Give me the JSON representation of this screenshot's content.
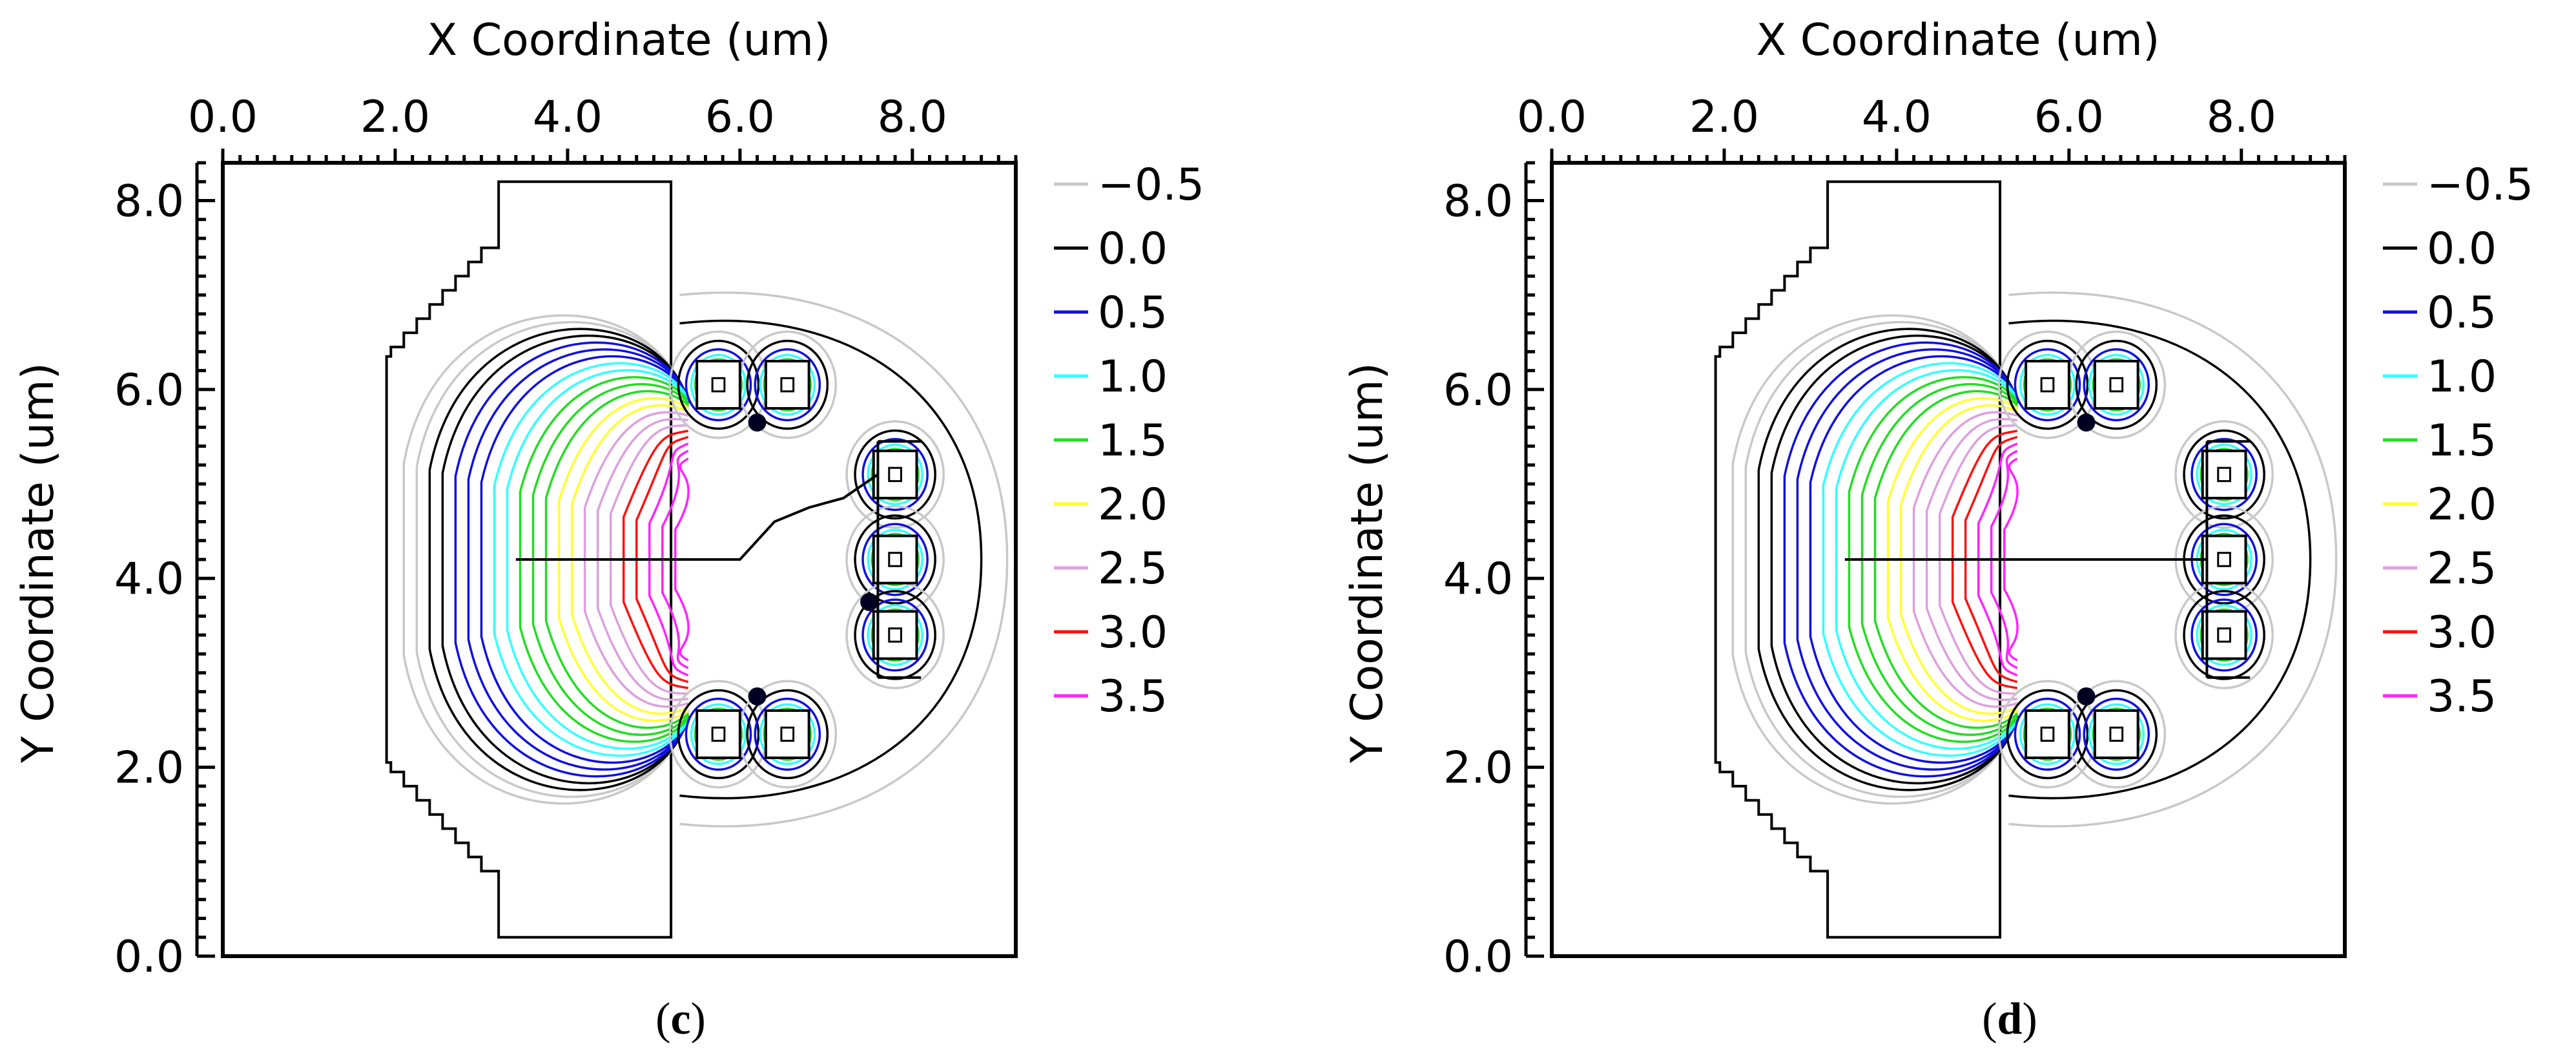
{
  "chart_data": [
    {
      "type": "contour",
      "xlabel": "X Coordinate (um)",
      "ylabel": "Y Coordinate (um)",
      "xlim": [
        0.0,
        9.2
      ],
      "ylim": [
        0.0,
        8.4
      ],
      "xticks": [
        "0.0",
        "2.0",
        "4.0",
        "6.0",
        "8.0"
      ],
      "yticks": [
        "0.0",
        "2.0",
        "4.0",
        "6.0",
        "8.0"
      ],
      "x_axis_position": "top",
      "legend": {
        "position": "right",
        "levels": [
          {
            "label": "−0.5",
            "value": -0.5,
            "color": "#c8c8c8"
          },
          {
            "label": "0.0",
            "value": 0.0,
            "color": "#000000"
          },
          {
            "label": "0.5",
            "value": 0.5,
            "color": "#1010e0"
          },
          {
            "label": "1.0",
            "value": 1.0,
            "color": "#33ffff"
          },
          {
            "label": "1.5",
            "value": 1.5,
            "color": "#22dd22"
          },
          {
            "label": "2.0",
            "value": 2.0,
            "color": "#ffff33"
          },
          {
            "label": "2.5",
            "value": 2.5,
            "color": "#dda0dd"
          },
          {
            "label": "3.0",
            "value": 3.0,
            "color": "#ff1010"
          },
          {
            "label": "3.5",
            "value": 3.5,
            "color": "#ff22ff"
          }
        ]
      },
      "line_start_x": 3.4,
      "line_y": 4.2,
      "caption_letter": "c",
      "variant": "c"
    },
    {
      "type": "contour",
      "xlabel": "X Coordinate (um)",
      "ylabel": "Y Coordinate (um)",
      "xlim": [
        0.0,
        9.2
      ],
      "ylim": [
        0.0,
        8.4
      ],
      "xticks": [
        "0.0",
        "2.0",
        "4.0",
        "6.0",
        "8.0"
      ],
      "yticks": [
        "0.0",
        "2.0",
        "4.0",
        "6.0",
        "8.0"
      ],
      "x_axis_position": "top",
      "legend": {
        "position": "right",
        "levels": [
          {
            "label": "−0.5",
            "value": -0.5,
            "color": "#c8c8c8"
          },
          {
            "label": "0.0",
            "value": 0.0,
            "color": "#000000"
          },
          {
            "label": "0.5",
            "value": 0.5,
            "color": "#1010e0"
          },
          {
            "label": "1.0",
            "value": 1.0,
            "color": "#33ffff"
          },
          {
            "label": "1.5",
            "value": 1.5,
            "color": "#22dd22"
          },
          {
            "label": "2.0",
            "value": 2.0,
            "color": "#ffff33"
          },
          {
            "label": "2.5",
            "value": 2.5,
            "color": "#dda0dd"
          },
          {
            "label": "3.0",
            "value": 3.0,
            "color": "#ff1010"
          },
          {
            "label": "3.5",
            "value": 3.5,
            "color": "#ff22ff"
          }
        ]
      },
      "line_start_x": 3.4,
      "line_y": 4.2,
      "caption_letter": "d",
      "variant": "d"
    }
  ]
}
